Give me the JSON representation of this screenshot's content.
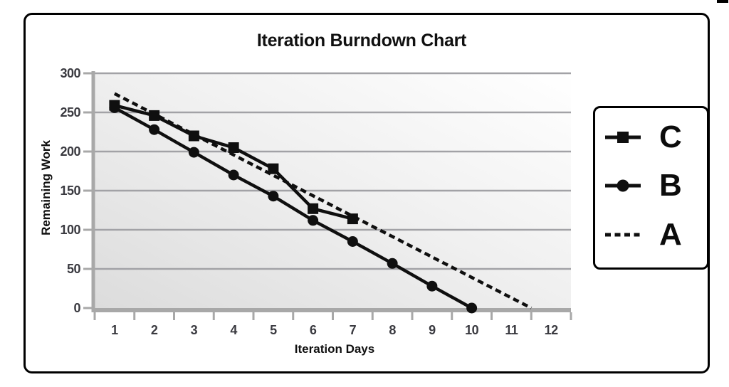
{
  "chart_data": {
    "type": "line",
    "title": "Iteration Burndown Chart",
    "xlabel": "Iteration Days",
    "ylabel": "Remaining Work",
    "x_ticks": [
      1,
      2,
      3,
      4,
      5,
      6,
      7,
      8,
      9,
      10,
      11,
      12
    ],
    "y_ticks": [
      0,
      50,
      100,
      150,
      200,
      250,
      300
    ],
    "ylim": [
      0,
      300
    ],
    "xlim": [
      0.5,
      12.5
    ],
    "grid": "horizontal",
    "legend_position": "right",
    "series": [
      {
        "name": "C",
        "marker": "square",
        "linestyle": "solid",
        "x": [
          1,
          2,
          3,
          4,
          5,
          6,
          7
        ],
        "values": [
          259,
          246,
          220,
          205,
          178,
          127,
          114
        ]
      },
      {
        "name": "B",
        "marker": "circle",
        "linestyle": "solid",
        "x": [
          1,
          2,
          3,
          4,
          5,
          6,
          7,
          8,
          9,
          10
        ],
        "values": [
          256,
          228,
          199,
          170,
          143,
          112,
          85,
          57,
          28,
          0
        ]
      },
      {
        "name": "A",
        "marker": "none",
        "linestyle": "dashed",
        "x": [
          1,
          11.5
        ],
        "values": [
          274,
          0
        ]
      }
    ]
  },
  "colors": {
    "series": "#0f0f0f",
    "axis": "#a8a8a8",
    "grid": "#a2a2a6",
    "tick_label": "#3a3a40",
    "plot_bg_from": "#dcdcdc",
    "plot_bg_mid": "#efefef",
    "plot_bg_to": "#ffffff",
    "frame_border": "#000000"
  }
}
